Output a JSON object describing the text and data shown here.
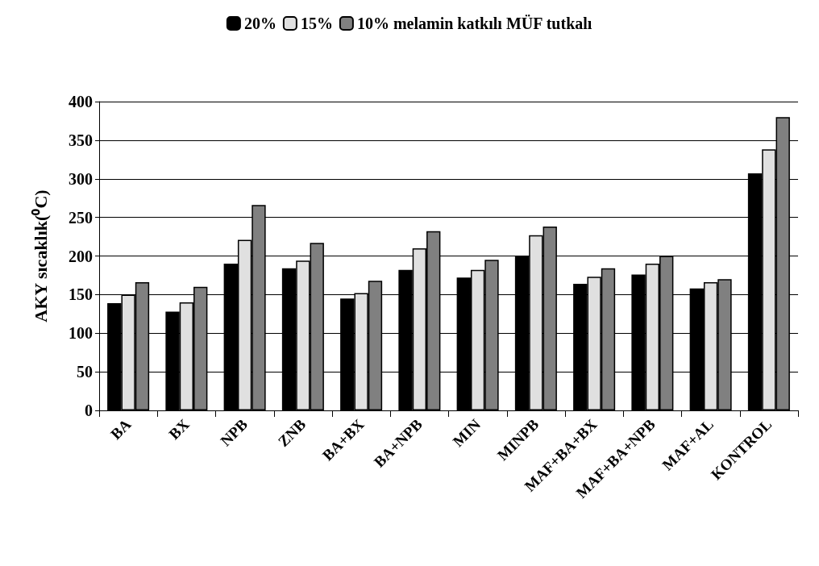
{
  "chart_data": {
    "type": "bar",
    "ylabel": "AKY sıcaklık(⁰C)",
    "categories": [
      "BA",
      "BX",
      "NPB",
      "ZNB",
      "BA+BX",
      "BA+NPB",
      "MIN",
      "MINPB",
      "MAF+BA+BX",
      "MAF+BA+NPB",
      "MAF+AL",
      "KONTROL"
    ],
    "series": [
      {
        "name": "20%",
        "color": "#000000",
        "values": [
          139,
          128,
          190,
          184,
          145,
          182,
          172,
          200,
          164,
          176,
          158,
          307
        ]
      },
      {
        "name": "15%",
        "color": "#e0e0e0",
        "values": [
          150,
          140,
          221,
          194,
          152,
          210,
          182,
          227,
          173,
          190,
          166,
          338
        ]
      },
      {
        "name": "10% melamin katkılı MÜF tutkalı",
        "color": "#808080",
        "values": [
          166,
          160,
          266,
          217,
          168,
          232,
          195,
          238,
          184,
          200,
          170,
          380
        ]
      }
    ],
    "ylim": [
      0,
      400
    ],
    "yticks": [
      0,
      50,
      100,
      150,
      200,
      250,
      300,
      350,
      400
    ],
    "grid": "y",
    "legend": "top"
  }
}
